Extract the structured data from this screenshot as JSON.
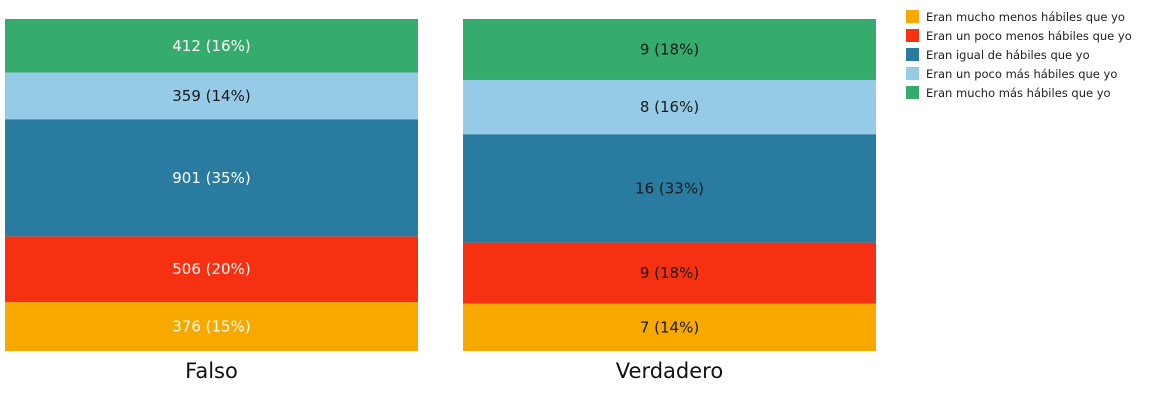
{
  "chart_data": {
    "type": "bar",
    "stacked": true,
    "normalized": true,
    "categories": [
      "Falso",
      "Verdadero"
    ],
    "series": [
      {
        "name": "Eran mucho menos hábiles que yo",
        "color": "#F7A900",
        "values": [
          376,
          7
        ],
        "labels": [
          "376 (15%)",
          "7 (14%)"
        ]
      },
      {
        "name": "Eran un poco menos hábiles que yo",
        "color": "#F53111",
        "values": [
          506,
          9
        ],
        "labels": [
          "506 (20%)",
          "9 (18%)"
        ]
      },
      {
        "name": "Eran igual de hábiles que yo",
        "color": "#2A7BA0",
        "values": [
          901,
          16
        ],
        "labels": [
          "901 (35%)",
          "16 (33%)"
        ]
      },
      {
        "name": "Eran un poco más hábiles que yo",
        "color": "#96CBE8",
        "values": [
          359,
          8
        ],
        "labels": [
          "359 (14%)",
          "8 (16%)"
        ]
      },
      {
        "name": "Eran mucho más hábiles que yo",
        "color": "#36AB6E",
        "values": [
          412,
          9
        ],
        "labels": [
          "412 (16%)",
          "9 (18%)"
        ]
      }
    ],
    "legend_position": "top-right",
    "grid": false
  }
}
